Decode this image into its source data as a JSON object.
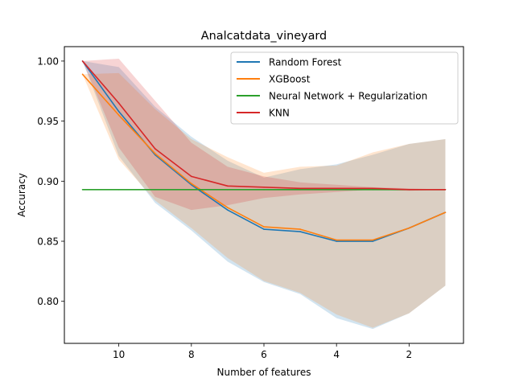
{
  "chart_data": {
    "type": "line",
    "title": "Analcatdata_vineyard",
    "xlabel": "Number of features",
    "ylabel": "Accuracy",
    "xlim": [
      11.5,
      0.5
    ],
    "ylim": [
      0.765,
      1.012
    ],
    "x": [
      11,
      10,
      9,
      8,
      7,
      6,
      5,
      4,
      3,
      2,
      1
    ],
    "xticks": [
      10,
      8,
      6,
      4,
      2
    ],
    "xtick_labels": [
      "10",
      "8",
      "6",
      "4",
      "2"
    ],
    "yticks": [
      0.8,
      0.85,
      0.9,
      0.95,
      1.0
    ],
    "ytick_labels": [
      "0.80",
      "0.85",
      "0.90",
      "0.95",
      "1.00"
    ],
    "legend_position": "top-right",
    "grid": false,
    "series": [
      {
        "name": "Random Forest",
        "color": "#1f77b4",
        "values": [
          1.0,
          0.958,
          0.922,
          0.897,
          0.876,
          0.86,
          0.858,
          0.85,
          0.85,
          0.861,
          0.874
        ],
        "band_upper": [
          1.0,
          0.995,
          0.962,
          0.937,
          0.917,
          0.903,
          0.91,
          0.914,
          0.922,
          0.931,
          0.935
        ],
        "band_lower": [
          1.0,
          0.921,
          0.882,
          0.859,
          0.833,
          0.816,
          0.806,
          0.786,
          0.777,
          0.79,
          0.813
        ]
      },
      {
        "name": "XGBoost",
        "color": "#ff7f0e",
        "values": [
          0.989,
          0.955,
          0.923,
          0.898,
          0.878,
          0.862,
          0.86,
          0.851,
          0.851,
          0.861,
          0.874
        ],
        "band_upper": [
          0.989,
          0.99,
          0.96,
          0.935,
          0.92,
          0.907,
          0.912,
          0.913,
          0.924,
          0.931,
          0.935
        ],
        "band_lower": [
          0.989,
          0.918,
          0.884,
          0.861,
          0.836,
          0.817,
          0.807,
          0.789,
          0.778,
          0.79,
          0.813
        ]
      },
      {
        "name": "Neural Network + Regularization",
        "color": "#2ca02c",
        "values": [
          0.893,
          0.893,
          0.893,
          0.893,
          0.893,
          0.893,
          0.893,
          0.893,
          0.893,
          0.893,
          0.893
        ]
      },
      {
        "name": "KNN",
        "color": "#d62728",
        "values": [
          1.0,
          0.965,
          0.927,
          0.904,
          0.896,
          0.895,
          0.894,
          0.894,
          0.894,
          0.893,
          0.893
        ],
        "band_upper": [
          1.0,
          1.002,
          0.967,
          0.932,
          0.912,
          0.904,
          0.899,
          0.897,
          0.895,
          0.894,
          0.893
        ],
        "band_lower": [
          1.0,
          0.928,
          0.887,
          0.876,
          0.88,
          0.886,
          0.889,
          0.891,
          0.893,
          0.892,
          0.893
        ]
      }
    ]
  }
}
